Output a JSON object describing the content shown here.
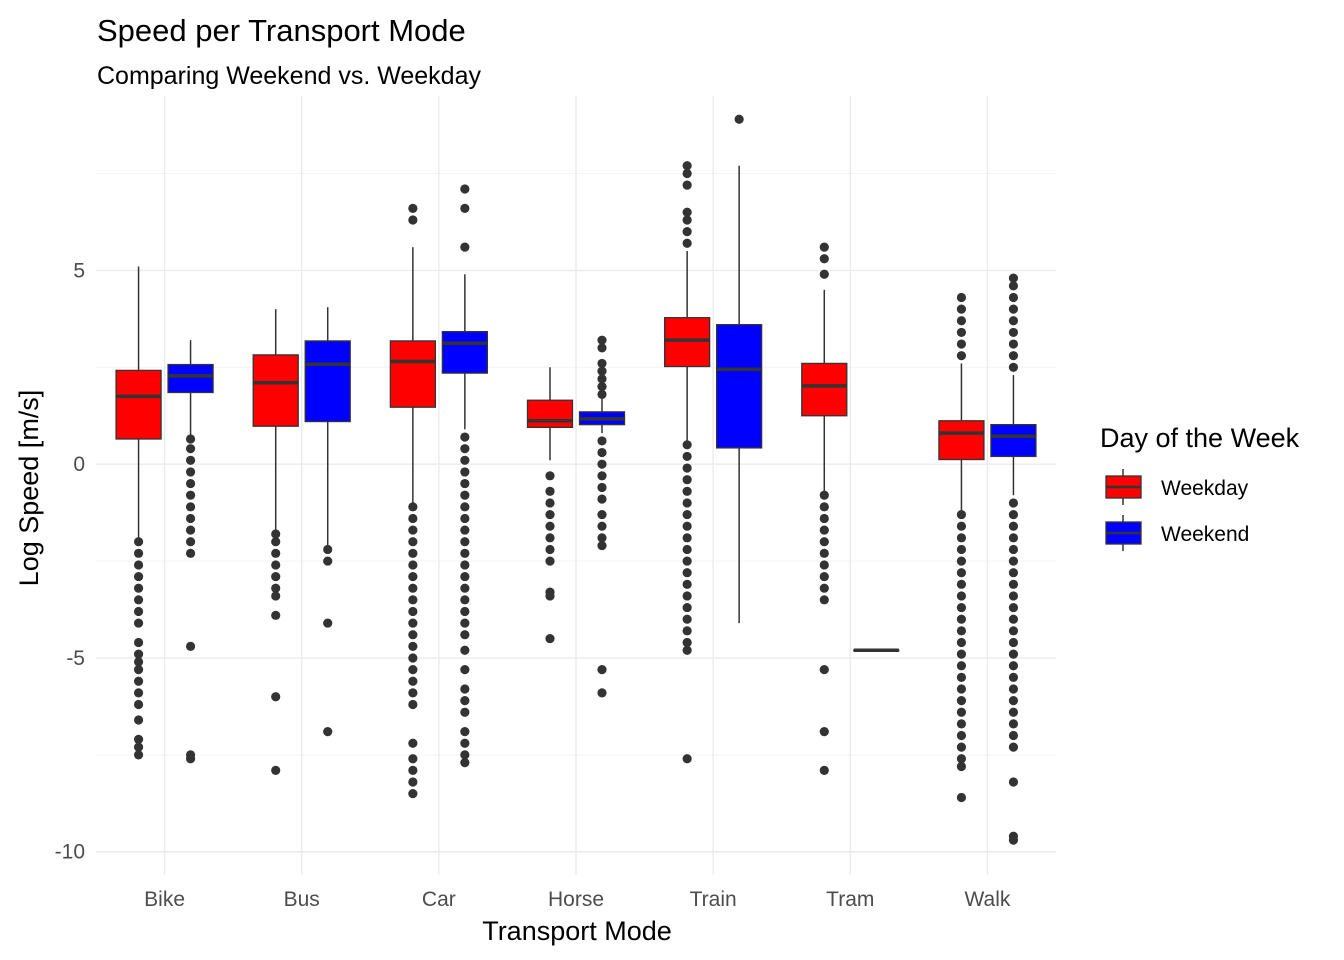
{
  "chart_data": {
    "type": "boxplot",
    "title": "Speed per Transport Mode",
    "subtitle": "Comparing Weekend vs. Weekday",
    "xlabel": "Transport Mode",
    "ylabel": "Log Speed [m/s]",
    "ylim": [
      -10.6,
      9.5
    ],
    "yticks": [
      -10,
      -5,
      0,
      5
    ],
    "grid": true,
    "legend": {
      "title": "Day of the Week",
      "placement": "right",
      "entries": [
        {
          "name": "Weekday",
          "color": "#ff0000"
        },
        {
          "name": "Weekend",
          "color": "#0000ff"
        }
      ]
    },
    "categories": [
      "Bike",
      "Bus",
      "Car",
      "Horse",
      "Train",
      "Tram",
      "Walk"
    ],
    "series": [
      {
        "name": "Weekday",
        "color": "#ff0000",
        "boxes": [
          {
            "q1": 0.65,
            "median": 1.75,
            "q3": 2.42,
            "whisker_low": -1.9,
            "whisker_high": 5.1,
            "outliers": [
              -2.0,
              -2.3,
              -2.6,
              -2.9,
              -3.2,
              -3.5,
              -3.8,
              -4.1,
              -4.6,
              -4.9,
              -5.1,
              -5.3,
              -5.6,
              -5.9,
              -6.2,
              -6.6,
              -7.1,
              -7.3,
              -7.5
            ]
          },
          {
            "q1": 0.98,
            "median": 2.1,
            "q3": 2.82,
            "whisker_low": -1.7,
            "whisker_high": 4.0,
            "outliers": [
              -1.8,
              -2.0,
              -2.3,
              -2.6,
              -2.9,
              -3.2,
              -3.4,
              -3.9,
              -6.0,
              -7.9
            ]
          },
          {
            "q1": 1.47,
            "median": 2.65,
            "q3": 3.18,
            "whisker_low": -1.0,
            "whisker_high": 5.6,
            "outliers": [
              6.3,
              6.6,
              -1.1,
              -1.4,
              -1.7,
              -2.0,
              -2.3,
              -2.6,
              -2.9,
              -3.2,
              -3.5,
              -3.8,
              -4.1,
              -4.4,
              -4.7,
              -5.0,
              -5.3,
              -5.6,
              -5.9,
              -6.2,
              -7.2,
              -7.6,
              -7.9,
              -8.2,
              -8.5
            ]
          },
          {
            "q1": 0.95,
            "median": 1.12,
            "q3": 1.65,
            "whisker_low": 0.1,
            "whisker_high": 2.5,
            "outliers": [
              -0.3,
              -0.7,
              -1.0,
              -1.3,
              -1.6,
              -1.9,
              -2.2,
              -2.5,
              -3.3,
              -3.4,
              -4.5
            ]
          },
          {
            "q1": 2.52,
            "median": 3.2,
            "q3": 3.78,
            "whisker_low": 0.6,
            "whisker_high": 5.5,
            "outliers": [
              5.7,
              6.0,
              6.3,
              6.5,
              7.2,
              7.5,
              7.7,
              0.5,
              0.2,
              -0.1,
              -0.4,
              -0.7,
              -1.0,
              -1.3,
              -1.6,
              -1.9,
              -2.2,
              -2.5,
              -2.8,
              -3.1,
              -3.4,
              -3.7,
              -4.0,
              -4.3,
              -4.6,
              -4.8,
              -7.6
            ]
          },
          {
            "q1": 1.25,
            "median": 2.02,
            "q3": 2.6,
            "whisker_low": -0.7,
            "whisker_high": 4.5,
            "outliers": [
              4.9,
              5.3,
              5.6,
              -0.8,
              -1.1,
              -1.4,
              -1.7,
              -2.0,
              -2.3,
              -2.6,
              -2.9,
              -3.2,
              -3.5,
              -5.3,
              -6.9,
              -7.9
            ]
          },
          {
            "q1": 0.12,
            "median": 0.8,
            "q3": 1.12,
            "whisker_low": -1.2,
            "whisker_high": 2.6,
            "outliers": [
              2.8,
              3.1,
              3.4,
              3.7,
              4.0,
              4.3,
              -1.3,
              -1.6,
              -1.9,
              -2.2,
              -2.5,
              -2.8,
              -3.1,
              -3.4,
              -3.7,
              -4.0,
              -4.3,
              -4.6,
              -4.9,
              -5.2,
              -5.5,
              -5.8,
              -6.1,
              -6.4,
              -6.7,
              -7.0,
              -7.3,
              -7.6,
              -7.8,
              -8.6
            ]
          }
        ]
      },
      {
        "name": "Weekend",
        "color": "#0000ff",
        "boxes": [
          {
            "q1": 1.85,
            "median": 2.28,
            "q3": 2.57,
            "whisker_low": 0.75,
            "whisker_high": 3.2,
            "outliers": [
              0.65,
              0.4,
              0.1,
              -0.2,
              -0.5,
              -0.8,
              -1.1,
              -1.4,
              -1.7,
              -2.0,
              -2.3,
              -4.7,
              -7.5,
              -7.6
            ]
          },
          {
            "q1": 1.1,
            "median": 2.58,
            "q3": 3.18,
            "whisker_low": -2.1,
            "whisker_high": 4.05,
            "outliers": [
              -2.2,
              -2.5,
              -4.1,
              -6.9
            ]
          },
          {
            "q1": 2.35,
            "median": 3.12,
            "q3": 3.42,
            "whisker_low": 0.9,
            "whisker_high": 4.9,
            "outliers": [
              5.6,
              6.6,
              7.1,
              0.7,
              0.4,
              0.1,
              -0.2,
              -0.5,
              -0.8,
              -1.1,
              -1.4,
              -1.7,
              -2.0,
              -2.3,
              -2.6,
              -2.9,
              -3.2,
              -3.5,
              -3.8,
              -4.1,
              -4.4,
              -4.8,
              -5.3,
              -5.8,
              -6.1,
              -6.4,
              -6.9,
              -7.2,
              -7.5,
              -7.7
            ]
          },
          {
            "q1": 1.02,
            "median": 1.17,
            "q3": 1.35,
            "whisker_low": 0.8,
            "whisker_high": 1.7,
            "outliers": [
              1.8,
              2.0,
              2.2,
              2.4,
              2.6,
              3.0,
              3.2,
              0.6,
              0.3,
              0.0,
              -0.3,
              -0.6,
              -0.9,
              -1.3,
              -1.6,
              -1.9,
              -2.1,
              -5.3,
              -5.9
            ]
          },
          {
            "q1": 0.42,
            "median": 2.45,
            "q3": 3.6,
            "whisker_low": -4.1,
            "whisker_high": 7.7,
            "outliers": [
              8.9
            ]
          },
          {
            "q1": -4.8,
            "median": -4.8,
            "q3": -4.8,
            "whisker_low": -4.8,
            "whisker_high": -4.8,
            "outliers": []
          },
          {
            "q1": 0.2,
            "median": 0.72,
            "q3": 1.02,
            "whisker_low": -0.8,
            "whisker_high": 2.3,
            "outliers": [
              2.5,
              2.8,
              3.1,
              3.4,
              3.7,
              4.0,
              4.3,
              4.6,
              4.8,
              -1.0,
              -1.3,
              -1.6,
              -1.9,
              -2.2,
              -2.5,
              -2.8,
              -3.1,
              -3.4,
              -3.7,
              -4.0,
              -4.3,
              -4.6,
              -4.9,
              -5.2,
              -5.5,
              -5.8,
              -6.1,
              -6.4,
              -6.7,
              -7.0,
              -7.3,
              -8.2,
              -9.6,
              -9.7
            ]
          }
        ]
      }
    ]
  }
}
